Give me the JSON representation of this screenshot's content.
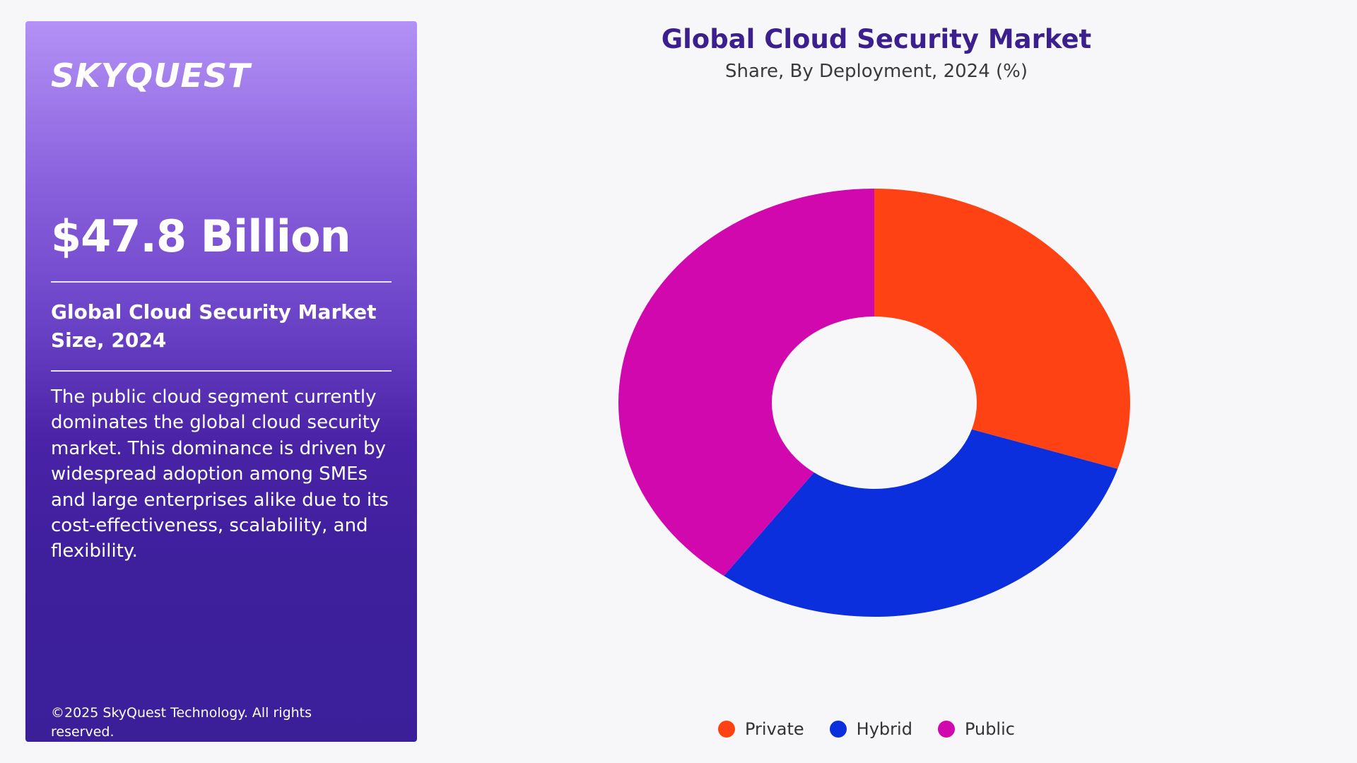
{
  "brand": {
    "logo_text": "SKYQUEST"
  },
  "panel": {
    "market_value": "$47.8 Billion",
    "market_caption": "Global Cloud Security Market Size, 2024",
    "description": "The public cloud segment currently dominates the global cloud security market. This dominance is driven by widespread adoption among SMEs and large enterprises alike due to its cost-effectiveness, scalability, and flexibility.",
    "copyright": "©2025 SkyQuest Technology. All rights reserved."
  },
  "chart_data": {
    "type": "pie",
    "title": "Global Cloud Security Market",
    "subtitle": "Share, By Deployment, 2024 (%)",
    "categories": [
      "Private",
      "Hybrid",
      "Public"
    ],
    "values": [
      30,
      30,
      40
    ],
    "colors": [
      "#ff4213",
      "#0b2fdc",
      "#d108ad"
    ],
    "donut": true,
    "legend": "bottom"
  }
}
